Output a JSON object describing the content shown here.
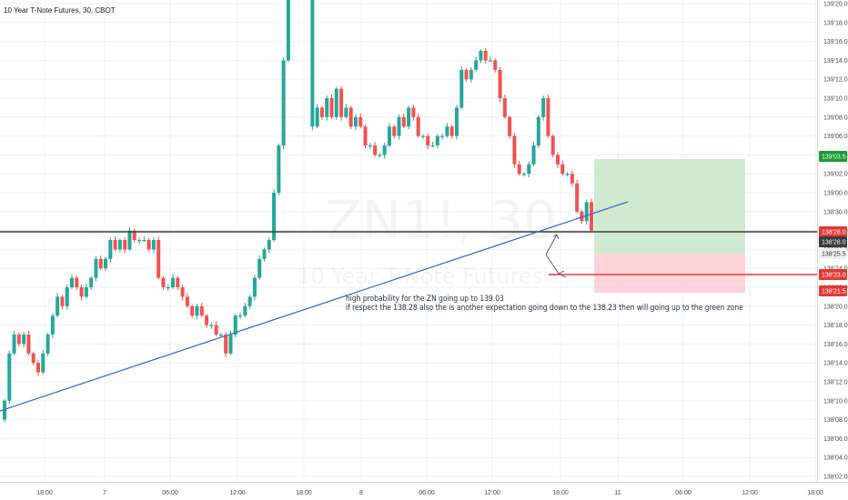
{
  "chart_title": "10 Year T-Note Futures, 30, CBOT",
  "watermark": {
    "symbol": "ZN1!, 30",
    "name": "10 Year T-Note Futures"
  },
  "annotations": [
    "high probability for the ZN going up to 139.03",
    "if respect the 138.28 also the is another expectation going down to the 138.23 then will going up to the green zone"
  ],
  "colors": {
    "up": "#26a69a",
    "down": "#ef5350",
    "trendline": "#3a6fc4",
    "target_zone": "#c8e6c9",
    "stop_zone": "#ffcdd2",
    "target_tag": "#1b9c2f",
    "stop_tag": "#e53935"
  },
  "chart_data": {
    "type": "candlestick",
    "interval": "30",
    "price_scale": {
      "min": 138.0,
      "max": 139.2,
      "ticks": [
        "139'20.0",
        "139'18.0",
        "139'16.0",
        "139'14.0",
        "139'12.0",
        "139'10.0",
        "139'08.0",
        "139'06.0",
        "139'04.0",
        "139'02.0",
        "139'00.0",
        "138'30.0",
        "138'28.0",
        "138'26.0",
        "138'24.0",
        "138'22.0",
        "138'20.0",
        "138'18.0",
        "138'16.0",
        "138'14.0",
        "138'12.0",
        "138'10.0",
        "138'08.0",
        "138'06.0",
        "138'04.0",
        "138'02.0"
      ]
    },
    "time_axis": {
      "ticks": [
        "18:00",
        "7",
        "06:00",
        "12:00",
        "18:00",
        "8",
        "06:00",
        "12:00",
        "18:00",
        "11",
        "06:00",
        "12:00",
        "18:00"
      ]
    },
    "price_tags": [
      {
        "label": "139'03.5",
        "kind": "target"
      },
      {
        "label": "138'28.0",
        "kind": "current"
      },
      {
        "label": "138'28.0",
        "kind": "last"
      },
      {
        "label": "138'25.5",
        "kind": "entry"
      },
      {
        "label": "138'23.0",
        "kind": "level"
      },
      {
        "label": "138'21.5",
        "kind": "stop"
      }
    ],
    "levels": {
      "horizontal_black": 138.28,
      "horizontal_red": 138.23,
      "target": 139.035,
      "entry": 138.255,
      "stop": 138.215
    },
    "trendline": {
      "from": 138.1,
      "to": 139.01
    },
    "closes": [
      138.1,
      138.15,
      138.17,
      138.16,
      138.17,
      138.15,
      138.14,
      138.13,
      138.15,
      138.17,
      138.19,
      138.21,
      138.2,
      138.22,
      138.23,
      138.22,
      138.21,
      138.22,
      138.23,
      138.25,
      138.24,
      138.25,
      138.27,
      138.26,
      138.27,
      138.26,
      138.28,
      138.27,
      138.27,
      138.27,
      138.26,
      138.27,
      138.23,
      138.22,
      138.22,
      138.23,
      138.22,
      138.21,
      138.2,
      138.19,
      138.2,
      138.19,
      138.18,
      138.18,
      138.17,
      138.17,
      138.15,
      138.17,
      138.19,
      138.19,
      138.2,
      138.21,
      138.23,
      138.25,
      138.26,
      138.27,
      138.32,
      138.37,
      138.46,
      138.54,
      138.61,
      138.7,
      138.9,
      138.97,
      139.07,
      139.09,
      139.08,
      139.1,
      139.08,
      139.11,
      139.08,
      139.09,
      139.07,
      139.08,
      139.07,
      139.05,
      139.05,
      139.04,
      139.04,
      139.05,
      139.07,
      139.06,
      139.08,
      139.07,
      139.09,
      139.08,
      139.06,
      139.06,
      139.05,
      139.05,
      139.06,
      139.06,
      139.07,
      139.06,
      139.09,
      139.13,
      139.12,
      139.13,
      139.14,
      139.15,
      139.14,
      139.14,
      139.13,
      139.1,
      139.08,
      139.06,
      139.03,
      139.02,
      139.02,
      139.03,
      139.05,
      139.08,
      139.1,
      139.06,
      139.04,
      139.03,
      139.02,
      139.02,
      139.01,
      138.3,
      138.29,
      138.31,
      138.28
    ]
  }
}
